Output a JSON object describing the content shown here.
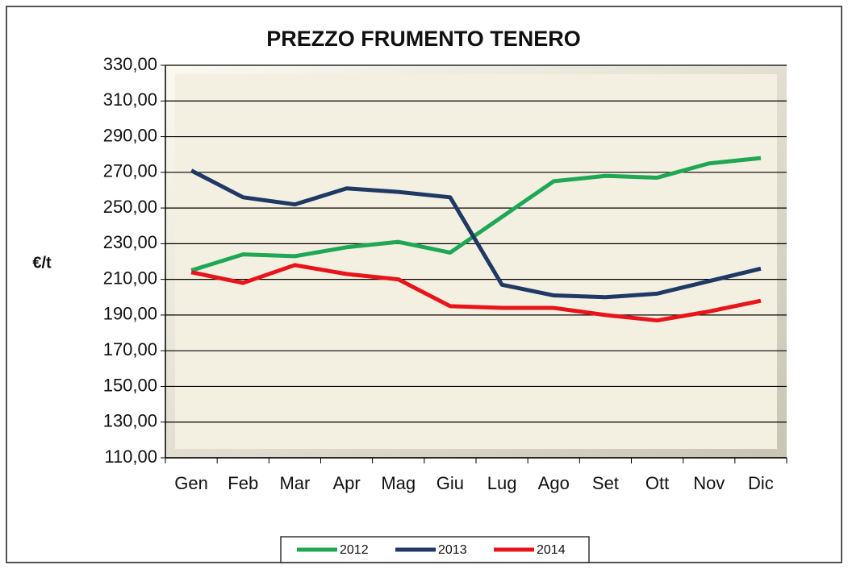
{
  "chart_data": {
    "type": "line",
    "title": "PREZZO  FRUMENTO TENERO",
    "y_label": "€/t",
    "categories": [
      "Gen",
      "Feb",
      "Mar",
      "Apr",
      "Mag",
      "Giu",
      "Lug",
      "Ago",
      "Set",
      "Ott",
      "Nov",
      "Dic"
    ],
    "series": [
      {
        "name": "2012",
        "color": "#1fa854",
        "values": [
          215,
          224,
          223,
          228,
          231,
          225,
          245,
          265,
          268,
          267,
          275,
          278
        ]
      },
      {
        "name": "2013",
        "color": "#1f3864",
        "values": [
          271,
          256,
          252,
          261,
          259,
          256,
          207,
          201,
          200,
          202,
          209,
          216
        ]
      },
      {
        "name": "2014",
        "color": "#e8141a",
        "values": [
          214,
          208,
          218,
          213,
          210,
          195,
          194,
          194,
          190,
          187,
          192,
          198
        ]
      }
    ],
    "ylim": [
      110,
      330
    ],
    "yticks": [
      {
        "value": 110,
        "label": "110,00"
      },
      {
        "value": 130,
        "label": "130,00"
      },
      {
        "value": 150,
        "label": "150,00"
      },
      {
        "value": 170,
        "label": "170,00"
      },
      {
        "value": 190,
        "label": "190,00"
      },
      {
        "value": 210,
        "label": "210,00"
      },
      {
        "value": 230,
        "label": "230,00"
      },
      {
        "value": 250,
        "label": "250,00"
      },
      {
        "value": 270,
        "label": "270,00"
      },
      {
        "value": 290,
        "label": "290,00"
      },
      {
        "value": 310,
        "label": "310,00"
      },
      {
        "value": 330,
        "label": "330,00"
      }
    ],
    "grid": true,
    "legend": "bottom"
  }
}
